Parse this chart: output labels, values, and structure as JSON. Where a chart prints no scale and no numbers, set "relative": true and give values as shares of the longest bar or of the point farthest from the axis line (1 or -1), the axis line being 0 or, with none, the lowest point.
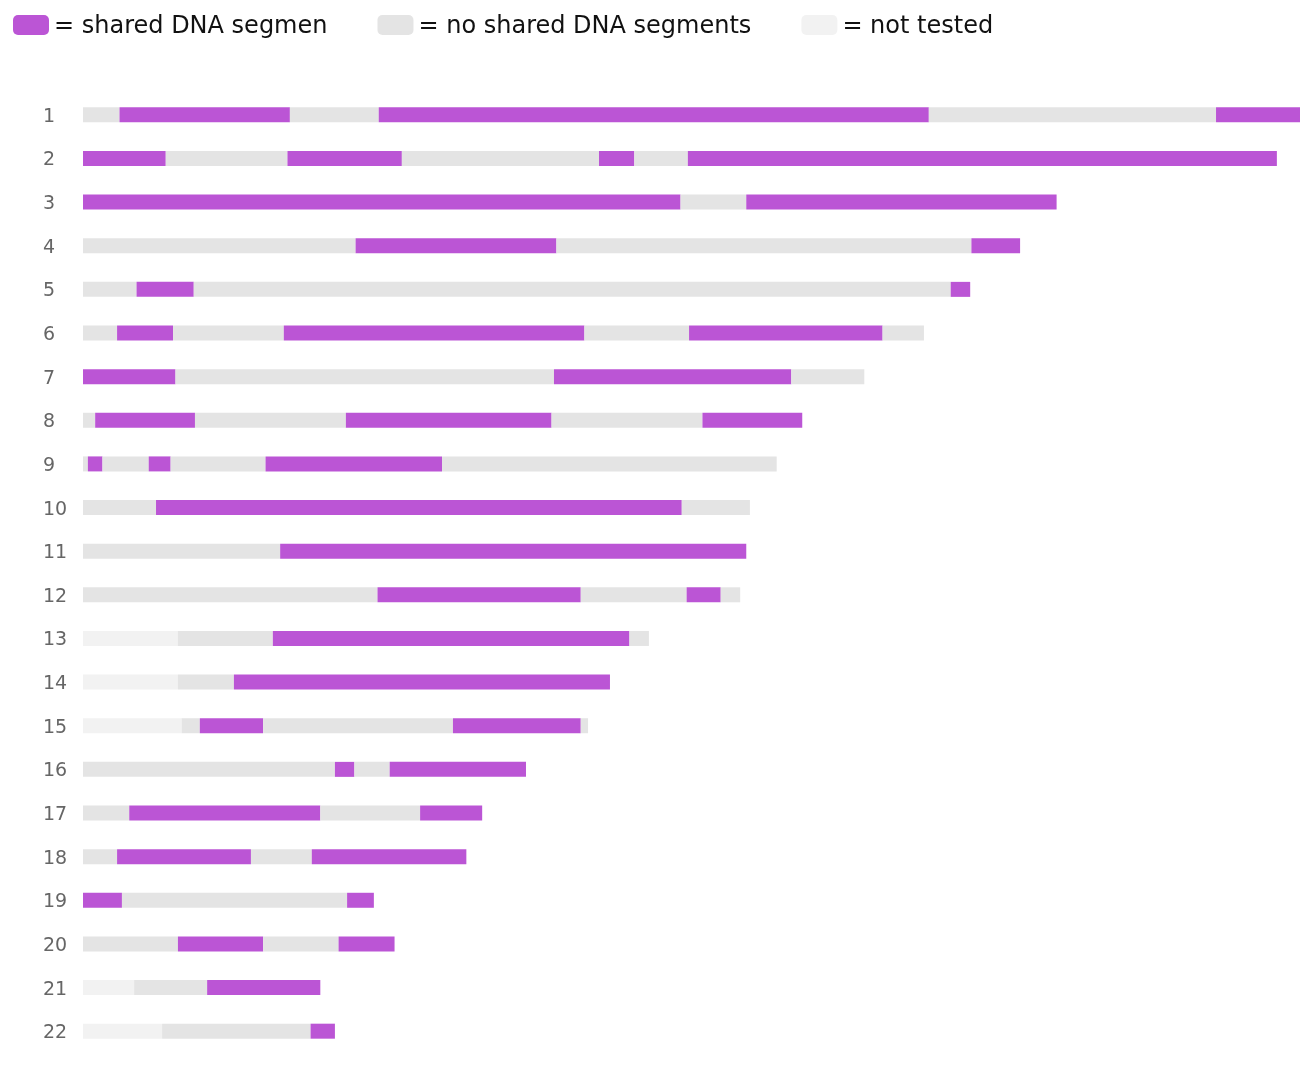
{
  "chart_data": {
    "type": "bar",
    "orientation": "horizontal",
    "stacked": true,
    "relative": true,
    "legend": "top left",
    "categories": [
      "1",
      "2",
      "3",
      "4",
      "5",
      "6",
      "7",
      "8",
      "9",
      "10",
      "11",
      "12",
      "13",
      "14",
      "15",
      "16",
      "17",
      "18",
      "19",
      "20",
      "21",
      "22"
    ],
    "series": [
      {
        "name": "= shared DNA segmen",
        "color": "#bb55d5",
        "values": [
          null,
          0.068,
          0.491,
          null,
          null,
          null,
          0.076,
          null,
          null,
          null,
          null,
          null,
          null,
          null,
          null,
          null,
          null,
          null,
          0.032,
          null,
          null,
          null
        ]
      },
      {
        "name": "= no shared DNA segments",
        "color": "#e4e4e4",
        "values": [
          0.03,
          null,
          null,
          0.224,
          0.044,
          0.028,
          null,
          0.01,
          0.004,
          0.06,
          0.162,
          0.242,
          null,
          null,
          null,
          0.207,
          0.038,
          0.028,
          null,
          0.078,
          null,
          null
        ]
      },
      {
        "name": "= not tested",
        "color": "#f2f2f2",
        "values": [
          null,
          null,
          null,
          null,
          null,
          null,
          null,
          null,
          null,
          null,
          null,
          null,
          0.078,
          0.078,
          0.081,
          null,
          null,
          null,
          null,
          null,
          0.042,
          0.065
        ]
      },
      {
        "color": "#bb55d5",
        "values": [
          0.14,
          null,
          null,
          0.165,
          0.047,
          0.046,
          null,
          0.082,
          0.012,
          0.432,
          0.383,
          0.167,
          null,
          null,
          null,
          0.016,
          0.157,
          0.11,
          null,
          0.07,
          null,
          null
        ]
      },
      {
        "color": "#e4e4e4",
        "values": [
          null,
          0.1,
          0.054,
          null,
          null,
          null,
          0.311,
          null,
          null,
          null,
          null,
          null,
          0.078,
          0.046,
          0.015,
          null,
          null,
          null,
          0.185,
          null,
          0.06,
          0.122
        ]
      },
      {
        "color": "#bb55d5",
        "values": [
          null,
          0.094,
          0.255,
          null,
          null,
          null,
          0.195,
          null,
          null,
          null,
          null,
          null,
          0.293,
          0.309,
          0.052,
          null,
          null,
          null,
          0.022,
          null,
          0.093,
          0.02
        ]
      },
      {
        "color": "#e4e4e4",
        "values": [
          0.073,
          null,
          null,
          0.341,
          0.622,
          0.091,
          null,
          0.124,
          0.038,
          0.056,
          null,
          0.087,
          null,
          null,
          null,
          0.029,
          0.082,
          0.05,
          null,
          0.062,
          null,
          null
        ]
      },
      {
        "color": "#bb55d5",
        "values": [
          0.452,
          null,
          null,
          0.04,
          0.016,
          0.247,
          null,
          0.169,
          0.018,
          null,
          null,
          0.028,
          null,
          null,
          null,
          0.112,
          0.051,
          0.127,
          null,
          0.046,
          null,
          null
        ]
      },
      {
        "color": "#e4e4e4",
        "values": [
          null,
          0.162,
          null,
          null,
          null,
          null,
          0.06,
          null,
          null,
          null,
          null,
          null,
          0.016,
          null,
          0.156,
          null,
          null,
          null,
          null,
          null,
          null,
          null
        ]
      },
      {
        "color": "#bb55d5",
        "values": [
          null,
          0.029,
          null,
          null,
          null,
          null,
          null,
          null,
          null,
          null,
          null,
          null,
          null,
          null,
          0.105,
          null,
          null,
          null,
          null,
          null,
          null,
          null
        ]
      },
      {
        "color": "#e4e4e4",
        "values": [
          0.236,
          null,
          null,
          null,
          null,
          0.086,
          null,
          0.124,
          0.078,
          null,
          null,
          0.016,
          null,
          null,
          null,
          null,
          null,
          null,
          null,
          null,
          null,
          null
        ]
      },
      {
        "color": "#bb55d5",
        "values": [
          0.069,
          null,
          null,
          null,
          null,
          0.159,
          null,
          0.082,
          0.145,
          null,
          null,
          null,
          null,
          null,
          null,
          null,
          null,
          null,
          null,
          null,
          null,
          null
        ]
      },
      {
        "color": "#e4e4e4",
        "values": [
          null,
          0.044,
          null,
          null,
          null,
          null,
          null,
          null,
          null,
          null,
          null,
          null,
          null,
          null,
          0.006,
          null,
          null,
          null,
          null,
          null,
          null,
          null
        ]
      },
      {
        "color": "#bb55d5",
        "values": [
          null,
          0.484,
          null,
          null,
          null,
          null,
          null,
          null,
          null,
          null,
          null,
          null,
          null,
          null,
          null,
          null,
          null,
          null,
          null,
          null,
          null,
          null
        ]
      },
      {
        "color": "#e4e4e4",
        "values": [
          null,
          null,
          null,
          null,
          null,
          0.034,
          null,
          null,
          0.275,
          null,
          null,
          null,
          null,
          null,
          null,
          null,
          null,
          null,
          null,
          null,
          null,
          null
        ]
      }
    ]
  }
}
